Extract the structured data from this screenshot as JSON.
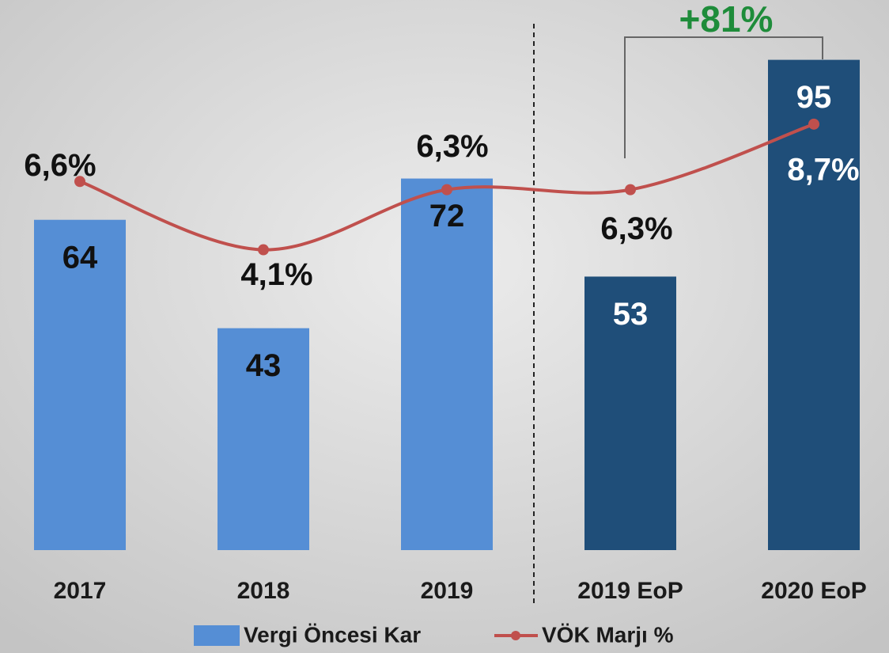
{
  "chart_data": {
    "type": "bar",
    "categories": [
      "2017",
      "2018",
      "2019",
      "2019 EoP",
      "2020 EoP"
    ],
    "ylim": [
      0,
      100
    ],
    "y2lim": [
      -6.9,
      12
    ],
    "series": [
      {
        "name": "Vergi Öncesi Kar",
        "type": "bar",
        "colors": [
          "#558ed5",
          "#558ed5",
          "#558ed5",
          "#1f4e79",
          "#1f4e79"
        ],
        "values": [
          64,
          43,
          72,
          53,
          95
        ]
      },
      {
        "name": "VÖK Marjı %",
        "type": "line",
        "axis": "y2",
        "color": "#c0504d",
        "values": [
          6.6,
          4.1,
          6.3,
          6.3,
          8.7
        ],
        "value_labels": [
          "6,6%",
          "4,1%",
          "6,3%",
          "6,3%",
          "8,7%"
        ]
      }
    ],
    "annotations": [
      {
        "text": "+81%",
        "color": "#1e8c3a"
      }
    ]
  }
}
